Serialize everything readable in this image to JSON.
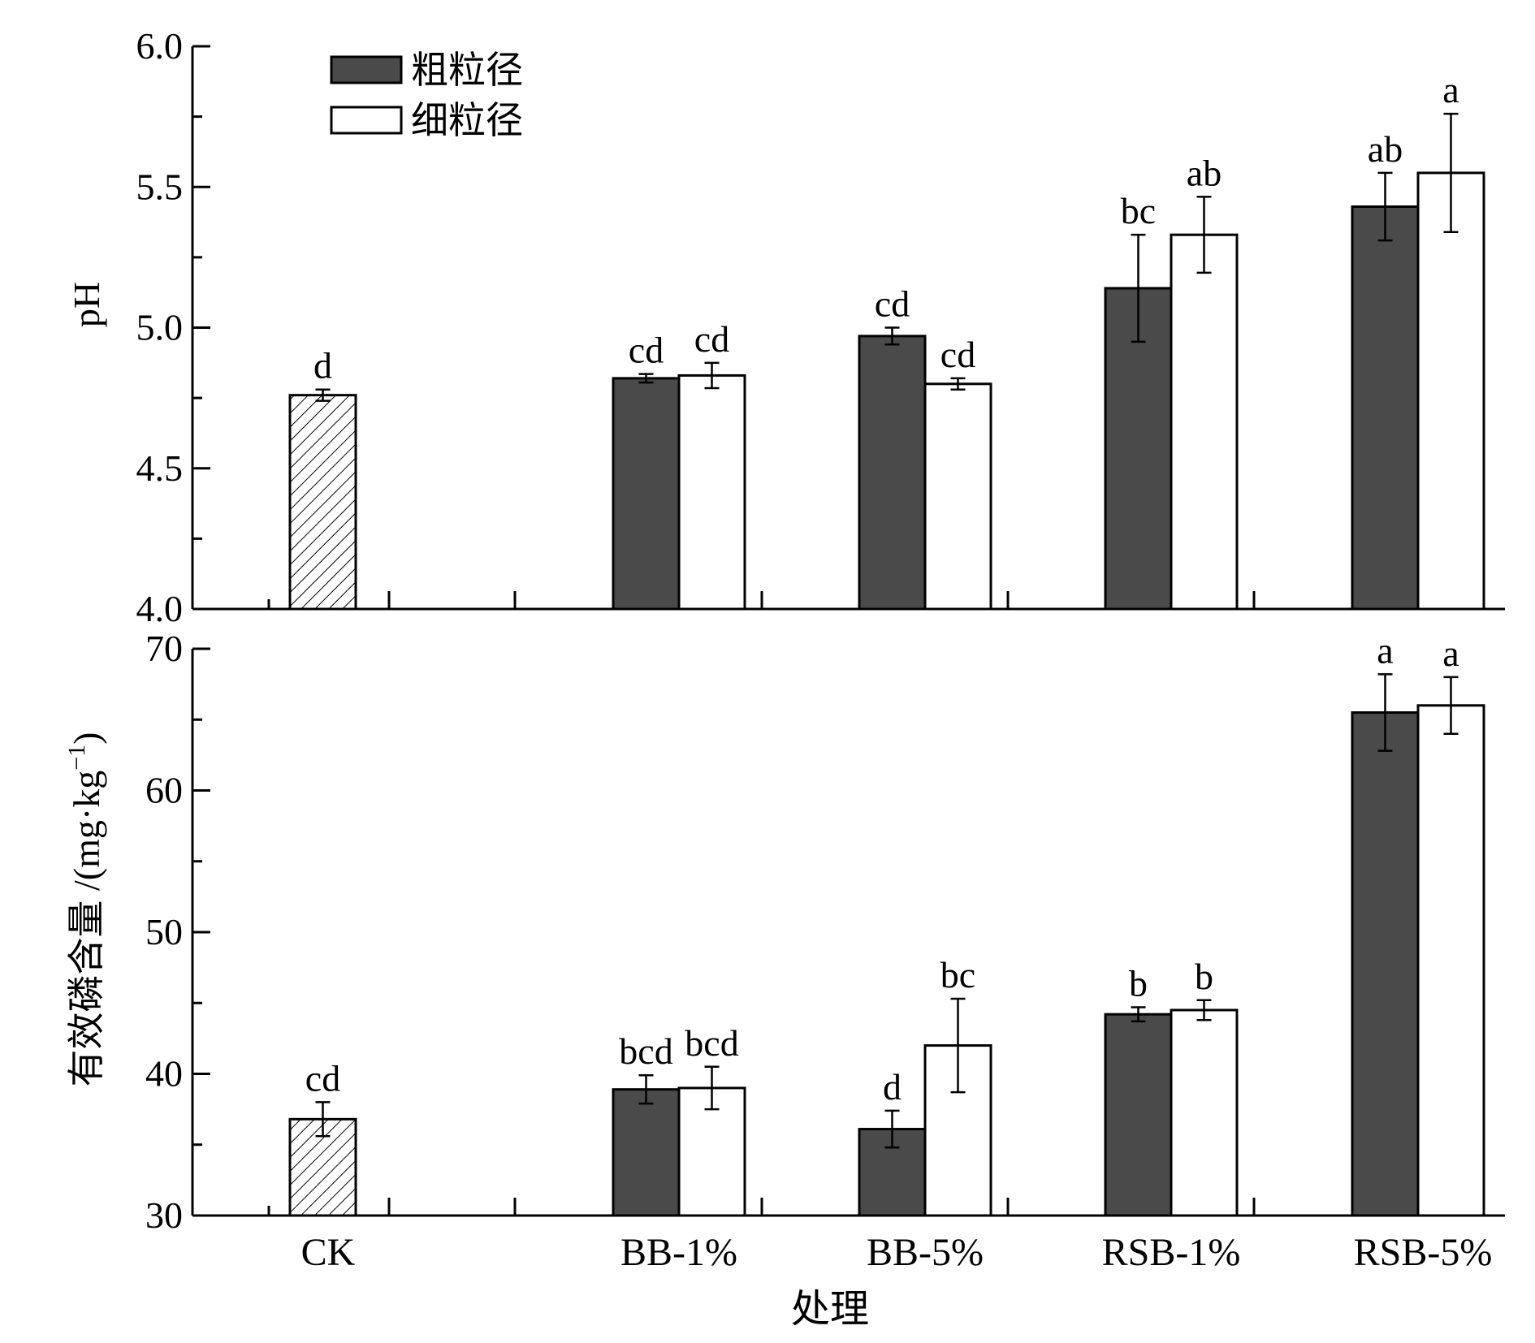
{
  "chart_data": [
    {
      "type": "bar",
      "id": "ph",
      "ylabel": "pH",
      "ylim": [
        4.0,
        6.0
      ],
      "yticks": [
        "4.0",
        "4.5",
        "5.0",
        "5.5",
        "6.0"
      ],
      "yticks_values": [
        4.0,
        4.5,
        5.0,
        5.5,
        6.0
      ],
      "categories": [
        "CK",
        "BB-1%",
        "BB-5%",
        "RSB-1%",
        "RSB-5%"
      ],
      "control": {
        "category": "CK",
        "value": 4.76,
        "error": 0.02,
        "label": "d"
      },
      "series": [
        {
          "name": "粗粒径",
          "fill": "dark",
          "values": [
            null,
            4.82,
            4.97,
            5.14,
            5.43
          ],
          "errors": [
            null,
            0.015,
            0.03,
            0.19,
            0.12
          ],
          "labels": [
            null,
            "cd",
            "cd",
            "bc",
            "ab"
          ]
        },
        {
          "name": "细粒径",
          "fill": "white",
          "values": [
            null,
            4.83,
            4.8,
            5.33,
            5.55
          ],
          "errors": [
            null,
            0.045,
            0.02,
            0.135,
            0.21
          ],
          "labels": [
            null,
            "cd",
            "cd",
            "ab",
            "a"
          ]
        }
      ]
    },
    {
      "type": "bar",
      "id": "available-p",
      "ylabel": "有效磷含量 /(mg·kg",
      "ylabel_sup": "−1",
      "ylabel_close": ")",
      "ylim": [
        30,
        70
      ],
      "yticks": [
        "30",
        "40",
        "50",
        "60",
        "70"
      ],
      "yticks_values": [
        30,
        40,
        50,
        60,
        70
      ],
      "xlabel": "处理",
      "categories": [
        "CK",
        "BB-1%",
        "BB-5%",
        "RSB-1%",
        "RSB-5%"
      ],
      "control": {
        "category": "CK",
        "value": 36.8,
        "error": 1.2,
        "label": "cd"
      },
      "series": [
        {
          "name": "粗粒径",
          "fill": "dark",
          "values": [
            null,
            38.9,
            36.1,
            44.2,
            65.5
          ],
          "errors": [
            null,
            1.0,
            1.3,
            0.5,
            2.7
          ],
          "labels": [
            null,
            "bcd",
            "d",
            "b",
            "a"
          ]
        },
        {
          "name": "细粒径",
          "fill": "white",
          "values": [
            null,
            39.0,
            42.0,
            44.5,
            66.0
          ],
          "errors": [
            null,
            1.5,
            3.3,
            0.7,
            2.0
          ],
          "labels": [
            null,
            "bcd",
            "bc",
            "b",
            "a"
          ]
        }
      ]
    }
  ],
  "legend": [
    "粗粒径",
    "细粒径"
  ],
  "colors": {
    "dark": "#4a4a4a",
    "white": "#ffffff",
    "axis": "#000000"
  }
}
